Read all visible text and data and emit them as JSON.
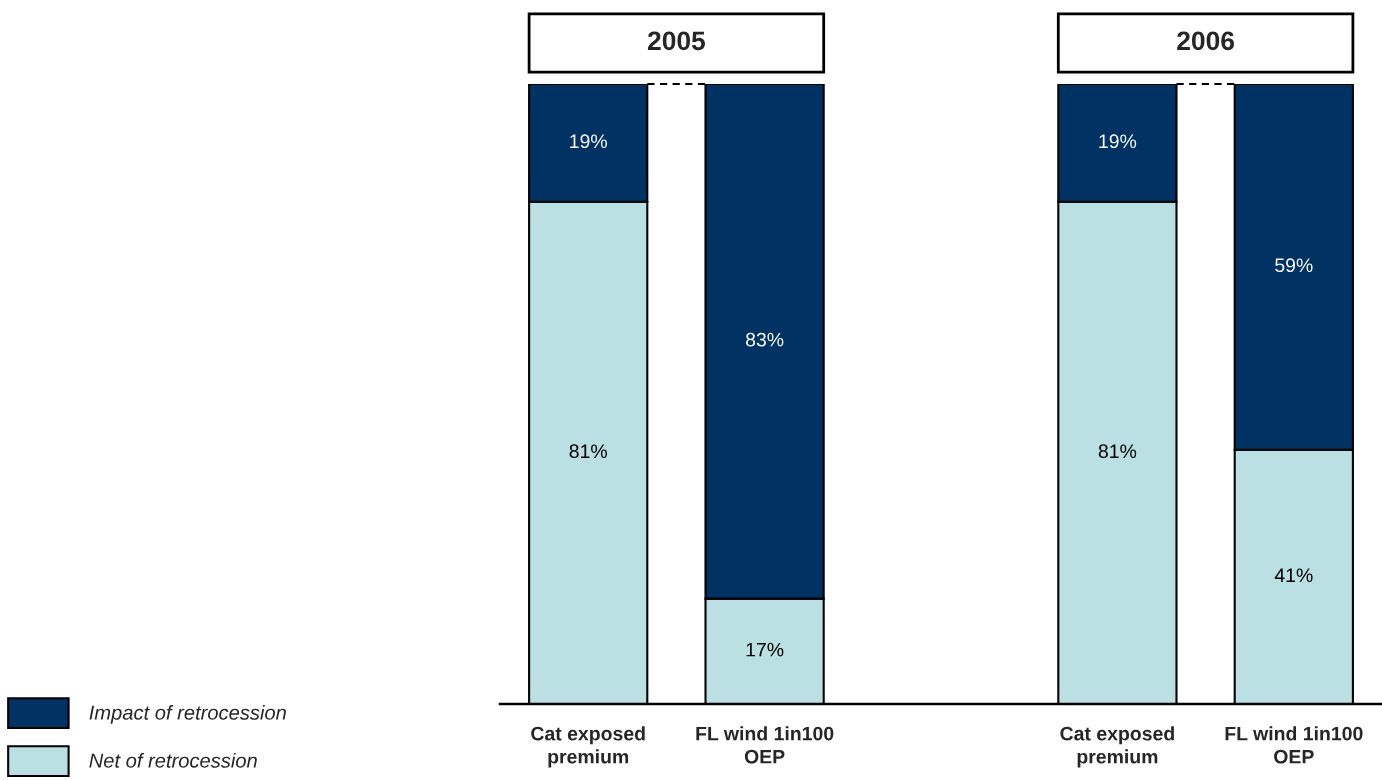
{
  "chart_data": {
    "type": "bar",
    "stacked": true,
    "categories": [
      "Cat exposed\npremium",
      "FL wind 1in100\nOEP",
      null,
      "Cat exposed\npremium",
      "FL wind 1in100\nOEP"
    ],
    "series": [
      {
        "name": "Net of retrocession",
        "color": "#bae0e3",
        "values": [
          81,
          17,
          null,
          81,
          41
        ],
        "value_labels": [
          "81%",
          "17%",
          null,
          "81%",
          "41%"
        ]
      },
      {
        "name": "Impact of retrocession",
        "color": "#003263",
        "values": [
          19,
          83,
          null,
          19,
          59
        ],
        "value_labels": [
          "19%",
          "83%",
          null,
          "19%",
          "59%"
        ]
      }
    ],
    "ylim": [
      0,
      100
    ],
    "tick_labels": "x",
    "legend": "bottom left",
    "annotations": [
      "2005",
      "2006"
    ]
  }
}
